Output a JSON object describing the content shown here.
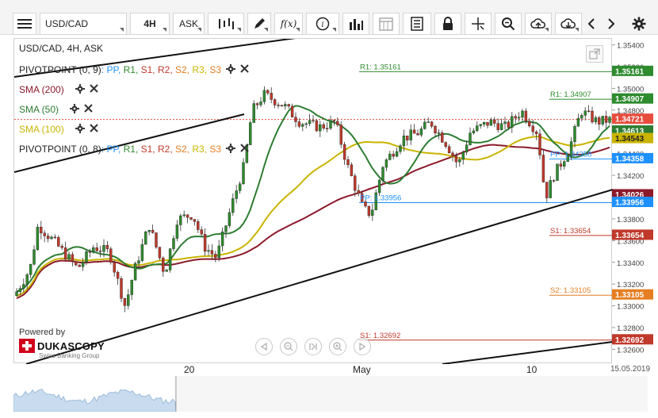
{
  "toolbar": {
    "symbol": "USD/CAD",
    "timeframe": "4H",
    "side": "ASK",
    "buttons": [
      "menu-icon",
      "bar-type-icon",
      "draw-icon",
      "fx-icon",
      "info-icon",
      "volume-icon",
      "calendar-icon",
      "news-icon",
      "lock-icon",
      "crosshair-icon",
      "zoom-icon",
      "upload-icon",
      "download-icon",
      "back-icon",
      "forward-icon",
      "settings-icon"
    ]
  },
  "chart": {
    "title": "USD/CAD, 4H, ASK",
    "legends": [
      {
        "label": "PIVOTPOINT (0, 9)",
        "parts": [
          ": PP,",
          "R1,",
          "S1,",
          "R2,",
          "S2,",
          "R3,",
          "S3"
        ],
        "colors": [
          "#333333",
          "#1e90ff",
          "#2e8b2e",
          "#c0392b",
          "#c0392b",
          "#e67e22",
          "#c9b400",
          "#e67e22"
        ]
      },
      {
        "label": "SMA (200)",
        "color": "#8b1a2b"
      },
      {
        "label": "SMA (50)",
        "color": "#2e7d32"
      },
      {
        "label": "SMA (100)",
        "color": "#c9b400"
      },
      {
        "label": "PIVOTPOINT (0, 8)",
        "parts": [
          ": PP,",
          "R1,",
          "S1,",
          "R2,",
          "S2,",
          "R3,",
          "S3"
        ],
        "colors": [
          "#333333",
          "#1e90ff",
          "#2e8b2e",
          "#c0392b",
          "#c0392b",
          "#e67e22",
          "#c9b400",
          "#e67e22"
        ]
      }
    ],
    "pivot_labels": [
      {
        "text": "R1: 1.35161",
        "value": 1.35161,
        "color": "#2e8b2e"
      },
      {
        "text": "R1: 1.34907",
        "value": 1.34907,
        "color": "#2e8b2e"
      },
      {
        "text": "PP: 1.34358",
        "value": 1.34358,
        "color": "#1e90ff"
      },
      {
        "text": "PP: 1.33956",
        "value": 1.33956,
        "color": "#1e90ff"
      },
      {
        "text": "S1: 1.33654",
        "value": 1.33654,
        "color": "#c0392b"
      },
      {
        "text": "S2: 1.33105",
        "value": 1.33105,
        "color": "#e67e22"
      },
      {
        "text": "S1: 1.32692",
        "value": 1.32692,
        "color": "#c0392b"
      }
    ],
    "price_badges": [
      {
        "text": "1.35161",
        "value": 1.35161,
        "bg": "#2e8b2e",
        "fg": "#ffffff"
      },
      {
        "text": "1.34907",
        "value": 1.34907,
        "bg": "#2e8b2e",
        "fg": "#ffffff"
      },
      {
        "text": "1.34721",
        "value": 1.34721,
        "bg": "#e74c3c",
        "fg": "#ffffff"
      },
      {
        "text": "1.34613",
        "value": 1.34613,
        "bg": "#2e7d32",
        "fg": "#ffffff"
      },
      {
        "text": "1.34543",
        "value": 1.34543,
        "bg": "#c9b400",
        "fg": "#222222"
      },
      {
        "text": "1.34358",
        "value": 1.34358,
        "bg": "#1e90ff",
        "fg": "#ffffff"
      },
      {
        "text": "1.34026",
        "value": 1.34026,
        "bg": "#8b1a2b",
        "fg": "#ffffff"
      },
      {
        "text": "1.33956",
        "value": 1.33956,
        "bg": "#1e90ff",
        "fg": "#ffffff"
      },
      {
        "text": "1.33654",
        "value": 1.33654,
        "bg": "#c0392b",
        "fg": "#ffffff"
      },
      {
        "text": "1.33105",
        "value": 1.33105,
        "bg": "#e67e22",
        "fg": "#ffffff"
      },
      {
        "text": "1.32692",
        "value": 1.32692,
        "bg": "#c0392b",
        "fg": "#ffffff"
      }
    ],
    "y_ticks": [
      "1.35400",
      "1.35200",
      "1.35000",
      "1.34800",
      "1.34600",
      "1.34400",
      "1.34200",
      "1.34000",
      "1.33800",
      "1.33600",
      "1.33400",
      "1.33200",
      "1.33000",
      "1.32800",
      "1.32600"
    ],
    "x_labels": [
      "20",
      "May",
      "10",
      "15.05.2019"
    ],
    "branding": {
      "powered": "Powered by",
      "name": "DUKASCOPY",
      "tagline": "Swiss Banking Group"
    }
  },
  "chart_data": {
    "type": "candlestick",
    "instrument": "USD/CAD",
    "timeframe": "4H",
    "ylim": [
      1.3255,
      1.3545
    ],
    "last_price": 1.34721,
    "sma": {
      "sma200": 1.34026,
      "sma50": 1.34613,
      "sma100": 1.34543
    },
    "pivots": {
      "R1_prev": 1.35161,
      "R1": 1.34907,
      "PP_prev": 1.33956,
      "PP": 1.34358,
      "S1": 1.33654,
      "S2": 1.33105,
      "S1_prev": 1.32692
    }
  }
}
